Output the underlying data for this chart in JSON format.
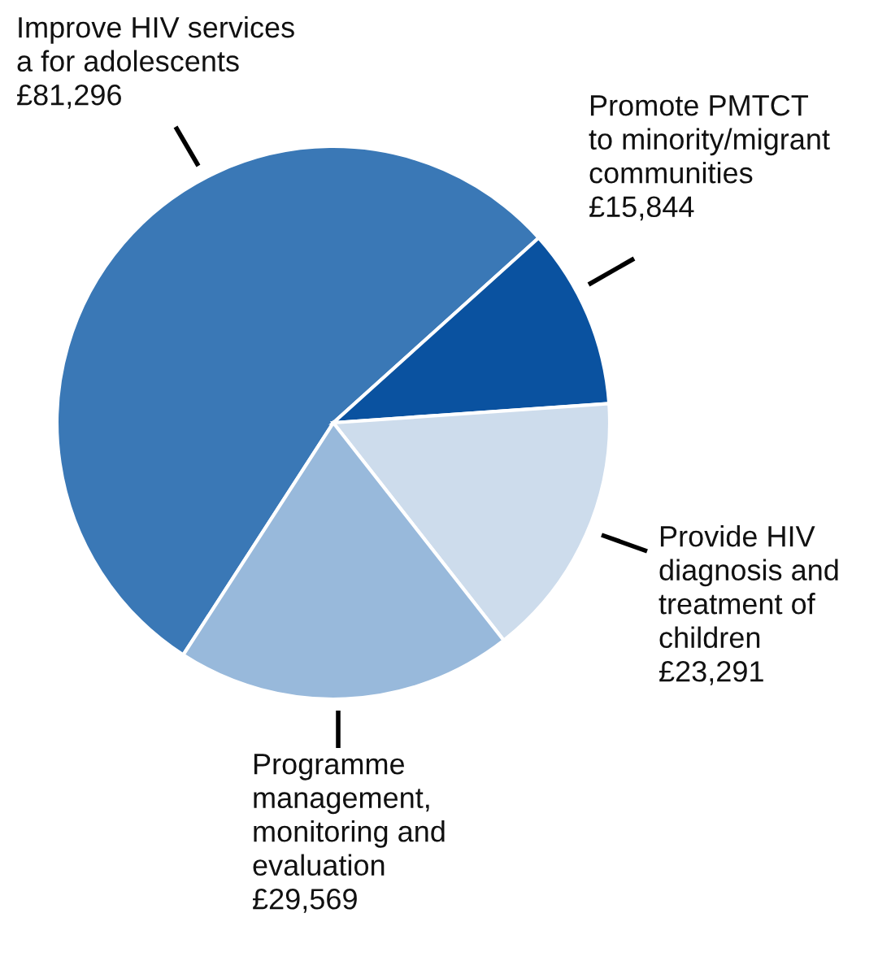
{
  "chart_data": {
    "type": "pie",
    "categories": [
      "Improve HIV services\na for adolescents",
      "Promote PMTCT\nto minority/migrant\ncommunities",
      "Provide HIV\ndiagnosis and\ntreatment of\nchildren",
      "Programme\nmanagement,\nmonitoring and\nevaluation"
    ],
    "values": [
      81296,
      15844,
      23291,
      29569
    ],
    "value_labels": [
      "£81,296",
      "£15,844",
      "£23,291",
      "£29,569"
    ],
    "colors": [
      "#3a78b6",
      "#0a52a0",
      "#cddcec",
      "#98b9db"
    ],
    "legend": false
  }
}
